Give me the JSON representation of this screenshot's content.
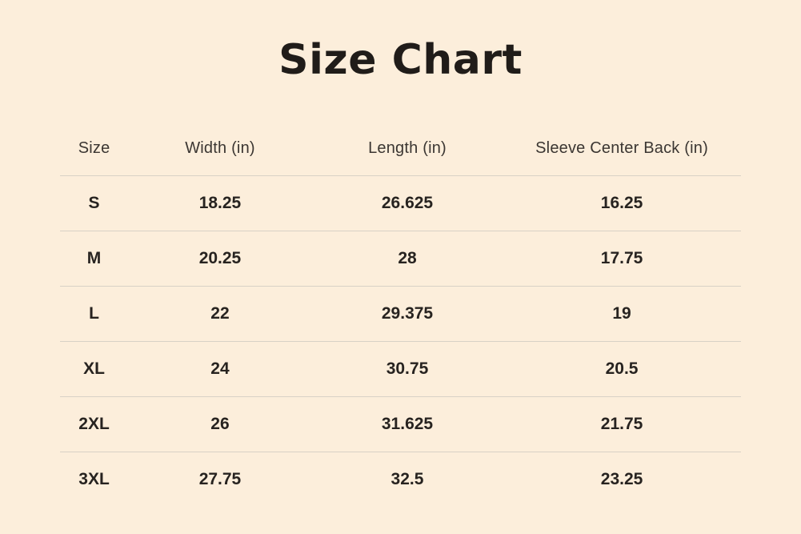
{
  "page": {
    "title": "Size Chart"
  },
  "theme": {
    "background_color": "#fceedb",
    "title_color": "#201c19",
    "header_text_color": "#3b3632",
    "cell_text_color": "#272320",
    "divider_color": "#d8d1c6"
  },
  "table": {
    "headers": [
      "Size",
      "Width (in)",
      "Length (in)",
      "Sleeve Center Back (in)"
    ],
    "rows": [
      [
        "S",
        "18.25",
        "26.625",
        "16.25"
      ],
      [
        "M",
        "20.25",
        "28",
        "17.75"
      ],
      [
        "L",
        "22",
        "29.375",
        "19"
      ],
      [
        "XL",
        "24",
        "30.75",
        "20.5"
      ],
      [
        "2XL",
        "26",
        "31.625",
        "21.75"
      ],
      [
        "3XL",
        "27.75",
        "32.5",
        "23.25"
      ]
    ]
  },
  "chart_data": {
    "type": "table",
    "title": "Size Chart",
    "columns": [
      "Size",
      "Width (in)",
      "Length (in)",
      "Sleeve Center Back (in)"
    ],
    "rows": [
      {
        "size": "S",
        "width_in": 18.25,
        "length_in": 26.625,
        "sleeve_center_back_in": 16.25
      },
      {
        "size": "M",
        "width_in": 20.25,
        "length_in": 28,
        "sleeve_center_back_in": 17.75
      },
      {
        "size": "L",
        "width_in": 22,
        "length_in": 29.375,
        "sleeve_center_back_in": 19
      },
      {
        "size": "XL",
        "width_in": 24,
        "length_in": 30.75,
        "sleeve_center_back_in": 20.5
      },
      {
        "size": "2XL",
        "width_in": 26,
        "length_in": 31.625,
        "sleeve_center_back_in": 21.75
      },
      {
        "size": "3XL",
        "width_in": 27.75,
        "length_in": 32.5,
        "sleeve_center_back_in": 23.25
      }
    ]
  }
}
